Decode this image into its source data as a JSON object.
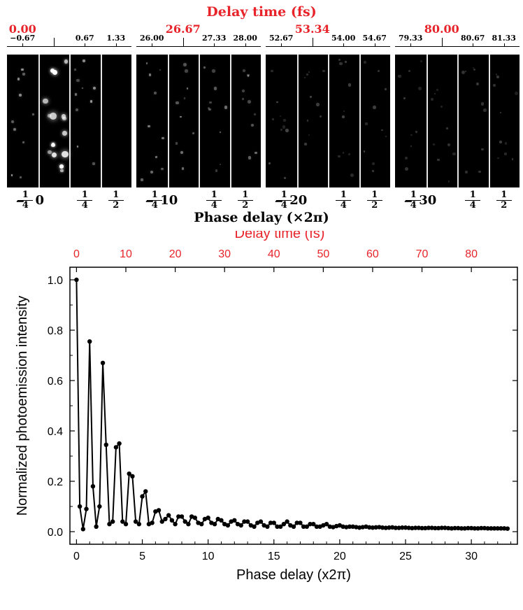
{
  "image_panel": {
    "top_title": "Delay time (fs)",
    "bottom_title": "Phase delay (×2π)",
    "groups": [
      {
        "delay_label": "0.00",
        "ticks": [
          "−0.67",
          "0.67",
          "1.33"
        ],
        "phase_center": "0"
      },
      {
        "delay_label": "26.67",
        "ticks": [
          "26.00",
          "27.33",
          "28.00"
        ],
        "phase_center": "10"
      },
      {
        "delay_label": "53.34",
        "ticks": [
          "52.67",
          "54.00",
          "54.67"
        ],
        "phase_center": "20"
      },
      {
        "delay_label": "80.00",
        "ticks": [
          "79.33",
          "80.67",
          "81.33"
        ],
        "phase_center": "30"
      }
    ],
    "phase_fractions": {
      "minus_quarter": "−",
      "num": "1",
      "quarter_den": "4",
      "half_den": "2"
    }
  },
  "chart_data": {
    "type": "line",
    "top_axis_label": "Delay time (fs)",
    "top_ticks": [
      "0",
      "10",
      "20",
      "30",
      "40",
      "50",
      "60",
      "70",
      "80"
    ],
    "xlabel": "Phase delay (x2π)",
    "ylabel": "Normalized photoemission intensity",
    "xlim": [
      -0.5,
      33.5
    ],
    "ylim": [
      -0.05,
      1.05
    ],
    "xticks": [
      "0",
      "5",
      "10",
      "15",
      "20",
      "25",
      "30"
    ],
    "yticks": [
      "0.0",
      "0.2",
      "0.4",
      "0.6",
      "0.8",
      "1.0"
    ],
    "series": [
      {
        "markers": true,
        "x": [
          0,
          0.25,
          0.5,
          0.75,
          1,
          1.25,
          1.5,
          1.75,
          2,
          2.25,
          2.5,
          2.75,
          3,
          3.25,
          3.5,
          3.75,
          4,
          4.25,
          4.5,
          4.75,
          5,
          5.25,
          5.5,
          5.75,
          6,
          6.25,
          6.5,
          6.75,
          7,
          7.25,
          7.5,
          7.75,
          8,
          8.25,
          8.5,
          8.75,
          9,
          9.25,
          9.5,
          9.75,
          10,
          10.25,
          10.5,
          10.75,
          11,
          11.25,
          11.5,
          11.75,
          12,
          12.25,
          12.5,
          12.75,
          13,
          13.25,
          13.5,
          13.75,
          14,
          14.25,
          14.5,
          14.75,
          15,
          15.25,
          15.5,
          15.75,
          16,
          16.25,
          16.5,
          16.75,
          17,
          17.25,
          17.5,
          17.75,
          18,
          18.25,
          18.5,
          18.75,
          19,
          19.25,
          19.5,
          19.75,
          20,
          20.25,
          20.5,
          20.75,
          21,
          21.25,
          21.5,
          21.75,
          22,
          22.25,
          22.5,
          22.75,
          23,
          23.25,
          23.5,
          23.75,
          24,
          24.25,
          24.5,
          24.75,
          25,
          25.25,
          25.5,
          25.75,
          26,
          26.25,
          26.5,
          26.75,
          27,
          27.25,
          27.5,
          27.75,
          28,
          28.25,
          28.5,
          28.75,
          29,
          29.25,
          29.5,
          29.75,
          30,
          30.25,
          30.5,
          30.75,
          31,
          31.25,
          31.5,
          31.75,
          32,
          32.25,
          32.5,
          32.75
        ],
        "y": [
          1.0,
          0.1,
          0.01,
          0.09,
          0.755,
          0.18,
          0.02,
          0.1,
          0.67,
          0.345,
          0.03,
          0.04,
          0.335,
          0.35,
          0.04,
          0.03,
          0.23,
          0.22,
          0.04,
          0.03,
          0.14,
          0.16,
          0.03,
          0.035,
          0.08,
          0.085,
          0.04,
          0.05,
          0.065,
          0.045,
          0.03,
          0.06,
          0.06,
          0.04,
          0.03,
          0.06,
          0.055,
          0.035,
          0.03,
          0.05,
          0.055,
          0.035,
          0.03,
          0.05,
          0.045,
          0.03,
          0.025,
          0.04,
          0.045,
          0.03,
          0.025,
          0.04,
          0.04,
          0.025,
          0.02,
          0.035,
          0.04,
          0.025,
          0.02,
          0.035,
          0.035,
          0.02,
          0.02,
          0.03,
          0.04,
          0.025,
          0.02,
          0.035,
          0.035,
          0.02,
          0.02,
          0.03,
          0.03,
          0.02,
          0.02,
          0.025,
          0.03,
          0.02,
          0.018,
          0.022,
          0.025,
          0.02,
          0.018,
          0.02,
          0.02,
          0.018,
          0.016,
          0.018,
          0.02,
          0.017,
          0.016,
          0.017,
          0.018,
          0.016,
          0.015,
          0.016,
          0.017,
          0.015,
          0.015,
          0.016,
          0.016,
          0.015,
          0.014,
          0.015,
          0.015,
          0.014,
          0.014,
          0.015,
          0.015,
          0.014,
          0.014,
          0.015,
          0.015,
          0.014,
          0.013,
          0.014,
          0.014,
          0.013,
          0.013,
          0.014,
          0.014,
          0.013,
          0.013,
          0.014,
          0.014,
          0.013,
          0.013,
          0.013,
          0.013,
          0.013,
          0.013,
          0.012
        ]
      }
    ],
    "grid": false,
    "line_color": "#000000",
    "top_axis_color": "#e8232a"
  }
}
